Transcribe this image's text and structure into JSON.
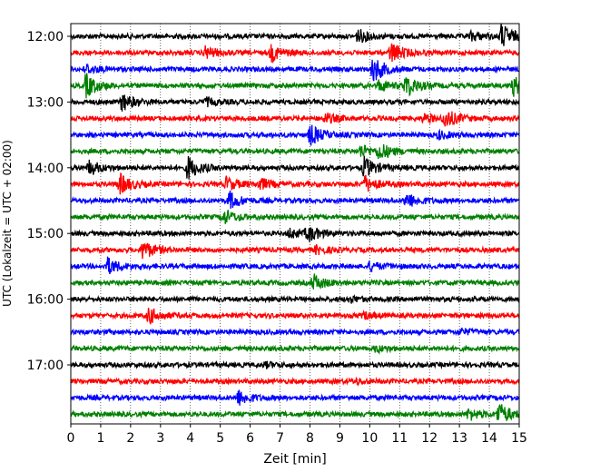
{
  "chart_data": {
    "type": "line",
    "title": "",
    "xlabel": "Zeit  [min]",
    "ylabel": "UTC (Lokalzeit = UTC + 02:00)",
    "xlim": [
      0,
      15
    ],
    "x_ticks": [
      "0",
      "1",
      "2",
      "3",
      "4",
      "5",
      "6",
      "7",
      "8",
      "9",
      "10",
      "11",
      "12",
      "13",
      "14",
      "15"
    ],
    "y_ticks": [
      {
        "label": "12:00",
        "trace": 0
      },
      {
        "label": "13:00",
        "trace": 4
      },
      {
        "label": "14:00",
        "trace": 8
      },
      {
        "label": "15:00",
        "trace": 12
      },
      {
        "label": "16:00",
        "trace": 16
      },
      {
        "label": "17:00",
        "trace": 20
      }
    ],
    "trace_minutes": 15,
    "trace_count": 24,
    "colors": [
      "#000000",
      "#ff0000",
      "#0000ff",
      "#008000"
    ],
    "grid": {
      "vertical_dotted": true
    },
    "series": [
      {
        "start": "12:00",
        "events": [
          {
            "t": 14.4,
            "a": 1.6
          },
          {
            "t": 9.6,
            "a": 0.9
          },
          {
            "t": 13.4,
            "a": 0.6
          }
        ]
      },
      {
        "start": "12:15",
        "events": [
          {
            "t": 10.7,
            "a": 1.5
          },
          {
            "t": 6.7,
            "a": 1.1
          },
          {
            "t": 4.5,
            "a": 0.8
          }
        ]
      },
      {
        "start": "12:30",
        "events": [
          {
            "t": 10.1,
            "a": 1.8
          },
          {
            "t": 0.5,
            "a": 0.6
          }
        ]
      },
      {
        "start": "12:45",
        "events": [
          {
            "t": 0.5,
            "a": 1.6
          },
          {
            "t": 11.2,
            "a": 1.5
          },
          {
            "t": 14.8,
            "a": 1.3
          },
          {
            "t": 10.3,
            "a": 0.7
          }
        ]
      },
      {
        "start": "13:00",
        "events": [
          {
            "t": 1.7,
            "a": 1.2
          },
          {
            "t": 4.5,
            "a": 0.5
          }
        ]
      },
      {
        "start": "13:15",
        "events": [
          {
            "t": 12.5,
            "a": 1.3
          },
          {
            "t": 8.5,
            "a": 0.7
          },
          {
            "t": 11.8,
            "a": 0.6
          }
        ]
      },
      {
        "start": "13:30",
        "events": [
          {
            "t": 8.0,
            "a": 1.4
          },
          {
            "t": 12.3,
            "a": 0.5
          }
        ]
      },
      {
        "start": "13:45",
        "events": [
          {
            "t": 10.3,
            "a": 1.1
          },
          {
            "t": 9.7,
            "a": 0.8
          }
        ]
      },
      {
        "start": "14:00",
        "events": [
          {
            "t": 3.9,
            "a": 1.6
          },
          {
            "t": 9.8,
            "a": 1.4
          },
          {
            "t": 0.6,
            "a": 1.0
          }
        ]
      },
      {
        "start": "14:15",
        "events": [
          {
            "t": 1.6,
            "a": 1.5
          },
          {
            "t": 9.8,
            "a": 1.2
          },
          {
            "t": 5.2,
            "a": 0.9
          },
          {
            "t": 6.3,
            "a": 0.8
          }
        ]
      },
      {
        "start": "14:30",
        "events": [
          {
            "t": 5.3,
            "a": 1.2
          },
          {
            "t": 11.2,
            "a": 1.1
          }
        ]
      },
      {
        "start": "14:45",
        "events": [
          {
            "t": 5.1,
            "a": 1.0
          }
        ]
      },
      {
        "start": "15:00",
        "events": [
          {
            "t": 7.9,
            "a": 1.1
          },
          {
            "t": 7.3,
            "a": 0.6
          }
        ]
      },
      {
        "start": "15:15",
        "events": [
          {
            "t": 2.4,
            "a": 1.3
          },
          {
            "t": 8.2,
            "a": 0.5
          }
        ]
      },
      {
        "start": "15:30",
        "events": [
          {
            "t": 1.2,
            "a": 1.2
          },
          {
            "t": 10.0,
            "a": 0.6
          }
        ]
      },
      {
        "start": "15:45",
        "events": [
          {
            "t": 8.1,
            "a": 1.1
          }
        ]
      },
      {
        "start": "16:00",
        "events": [
          {
            "t": 9.3,
            "a": 0.4
          }
        ]
      },
      {
        "start": "16:15",
        "events": [
          {
            "t": 2.6,
            "a": 1.1
          },
          {
            "t": 9.8,
            "a": 0.4
          }
        ]
      },
      {
        "start": "16:30",
        "events": [
          {
            "t": 13.0,
            "a": 0.4
          }
        ]
      },
      {
        "start": "16:45",
        "events": [
          {
            "t": 10.2,
            "a": 0.4
          }
        ]
      },
      {
        "start": "17:00",
        "events": [
          {
            "t": 6.5,
            "a": 0.3
          }
        ]
      },
      {
        "start": "17:15",
        "events": [
          {
            "t": 9.5,
            "a": 0.3
          }
        ]
      },
      {
        "start": "17:30",
        "events": [
          {
            "t": 5.6,
            "a": 1.0
          }
        ]
      },
      {
        "start": "17:45",
        "events": [
          {
            "t": 14.3,
            "a": 1.5
          },
          {
            "t": 13.3,
            "a": 0.8
          }
        ]
      }
    ]
  }
}
